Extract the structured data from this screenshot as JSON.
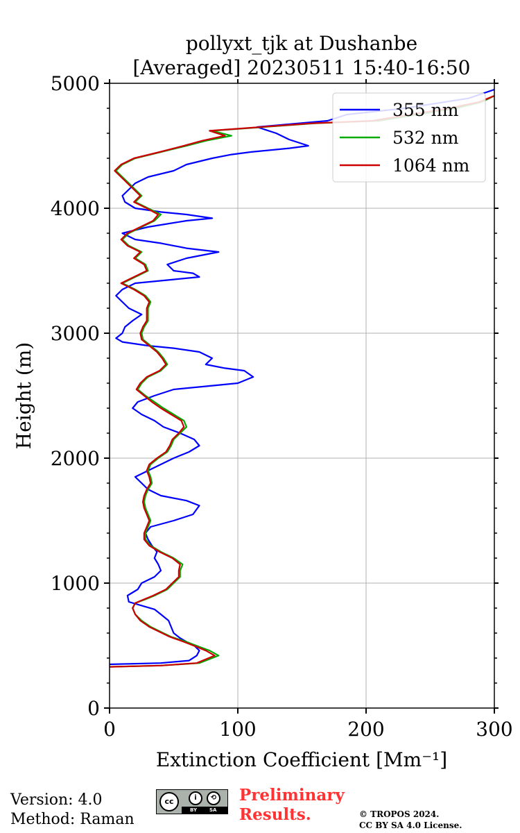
{
  "chart_data": {
    "type": "line",
    "title_line1": "pollyxt_tjk at Dushanbe",
    "title_line2": "[Averaged] 20230511 15:40-16:50",
    "xlabel": "Extinction Coefficient [Mm⁻¹]",
    "ylabel": "Height (m)",
    "xlim": [
      0,
      300
    ],
    "ylim": [
      0,
      5000
    ],
    "xticks": [
      "0",
      "100",
      "200",
      "300"
    ],
    "yticks": [
      "0",
      "1000",
      "2000",
      "3000",
      "4000",
      "5000"
    ],
    "grid": true,
    "legend_position": "top-right",
    "series": [
      {
        "name": "355 nm",
        "color": "#0000ff",
        "points": [
          [
            0,
            350
          ],
          [
            40,
            360
          ],
          [
            62,
            380
          ],
          [
            68,
            420
          ],
          [
            70,
            460
          ],
          [
            66,
            500
          ],
          [
            60,
            530
          ],
          [
            55,
            560
          ],
          [
            50,
            600
          ],
          [
            48,
            650
          ],
          [
            46,
            700
          ],
          [
            40,
            750
          ],
          [
            35,
            790
          ],
          [
            25,
            820
          ],
          [
            15,
            850
          ],
          [
            14,
            900
          ],
          [
            22,
            950
          ],
          [
            25,
            1000
          ],
          [
            35,
            1050
          ],
          [
            40,
            1100
          ],
          [
            38,
            1150
          ],
          [
            35,
            1200
          ],
          [
            37,
            1250
          ],
          [
            33,
            1300
          ],
          [
            30,
            1350
          ],
          [
            28,
            1400
          ],
          [
            32,
            1450
          ],
          [
            50,
            1500
          ],
          [
            65,
            1550
          ],
          [
            70,
            1620
          ],
          [
            60,
            1660
          ],
          [
            40,
            1700
          ],
          [
            30,
            1750
          ],
          [
            25,
            1800
          ],
          [
            20,
            1850
          ],
          [
            30,
            1900
          ],
          [
            40,
            1950
          ],
          [
            50,
            2000
          ],
          [
            62,
            2050
          ],
          [
            70,
            2100
          ],
          [
            66,
            2150
          ],
          [
            55,
            2200
          ],
          [
            42,
            2250
          ],
          [
            35,
            2300
          ],
          [
            25,
            2350
          ],
          [
            18,
            2400
          ],
          [
            22,
            2450
          ],
          [
            35,
            2500
          ],
          [
            50,
            2550
          ],
          [
            80,
            2580
          ],
          [
            100,
            2600
          ],
          [
            112,
            2650
          ],
          [
            105,
            2700
          ],
          [
            90,
            2720
          ],
          [
            75,
            2750
          ],
          [
            80,
            2800
          ],
          [
            70,
            2850
          ],
          [
            50,
            2880
          ],
          [
            30,
            2900
          ],
          [
            10,
            2930
          ],
          [
            5,
            2960
          ],
          [
            10,
            3000
          ],
          [
            12,
            3050
          ],
          [
            18,
            3100
          ],
          [
            25,
            3150
          ],
          [
            15,
            3200
          ],
          [
            10,
            3250
          ],
          [
            5,
            3300
          ],
          [
            10,
            3350
          ],
          [
            20,
            3400
          ],
          [
            50,
            3430
          ],
          [
            70,
            3450
          ],
          [
            65,
            3480
          ],
          [
            50,
            3500
          ],
          [
            45,
            3550
          ],
          [
            60,
            3600
          ],
          [
            85,
            3650
          ],
          [
            60,
            3680
          ],
          [
            40,
            3720
          ],
          [
            20,
            3750
          ],
          [
            10,
            3800
          ],
          [
            30,
            3850
          ],
          [
            60,
            3900
          ],
          [
            80,
            3920
          ],
          [
            60,
            3950
          ],
          [
            40,
            3970
          ],
          [
            20,
            4000
          ],
          [
            12,
            4050
          ],
          [
            10,
            4100
          ],
          [
            15,
            4150
          ],
          [
            20,
            4200
          ],
          [
            30,
            4250
          ],
          [
            50,
            4300
          ],
          [
            60,
            4350
          ],
          [
            80,
            4400
          ],
          [
            95,
            4430
          ],
          [
            110,
            4450
          ],
          [
            140,
            4480
          ],
          [
            155,
            4500
          ],
          [
            140,
            4550
          ],
          [
            130,
            4600
          ],
          [
            115,
            4650
          ],
          [
            170,
            4700
          ],
          [
            185,
            4750
          ],
          [
            230,
            4800
          ],
          [
            280,
            4880
          ],
          [
            300,
            4950
          ]
        ]
      },
      {
        "name": "532 nm",
        "color": "#00aa00",
        "points": [
          [
            0,
            330
          ],
          [
            40,
            340
          ],
          [
            70,
            360
          ],
          [
            85,
            420
          ],
          [
            78,
            460
          ],
          [
            70,
            490
          ],
          [
            60,
            530
          ],
          [
            48,
            570
          ],
          [
            40,
            610
          ],
          [
            32,
            650
          ],
          [
            25,
            700
          ],
          [
            20,
            750
          ],
          [
            18,
            800
          ],
          [
            20,
            840
          ],
          [
            28,
            870
          ],
          [
            35,
            900
          ],
          [
            45,
            950
          ],
          [
            50,
            1000
          ],
          [
            55,
            1050
          ],
          [
            55,
            1100
          ],
          [
            57,
            1150
          ],
          [
            50,
            1200
          ],
          [
            40,
            1250
          ],
          [
            32,
            1300
          ],
          [
            28,
            1350
          ],
          [
            28,
            1400
          ],
          [
            30,
            1450
          ],
          [
            32,
            1500
          ],
          [
            30,
            1550
          ],
          [
            28,
            1600
          ],
          [
            27,
            1650
          ],
          [
            28,
            1700
          ],
          [
            30,
            1750
          ],
          [
            33,
            1800
          ],
          [
            32,
            1850
          ],
          [
            30,
            1900
          ],
          [
            32,
            1950
          ],
          [
            38,
            2000
          ],
          [
            45,
            2050
          ],
          [
            48,
            2100
          ],
          [
            50,
            2150
          ],
          [
            55,
            2200
          ],
          [
            60,
            2250
          ],
          [
            58,
            2300
          ],
          [
            50,
            2350
          ],
          [
            42,
            2400
          ],
          [
            35,
            2450
          ],
          [
            28,
            2500
          ],
          [
            22,
            2550
          ],
          [
            25,
            2600
          ],
          [
            30,
            2650
          ],
          [
            40,
            2700
          ],
          [
            45,
            2750
          ],
          [
            42,
            2800
          ],
          [
            38,
            2850
          ],
          [
            32,
            2900
          ],
          [
            26,
            2950
          ],
          [
            25,
            3000
          ],
          [
            27,
            3050
          ],
          [
            30,
            3100
          ],
          [
            30,
            3150
          ],
          [
            30,
            3200
          ],
          [
            32,
            3250
          ],
          [
            28,
            3300
          ],
          [
            20,
            3350
          ],
          [
            10,
            3400
          ],
          [
            20,
            3450
          ],
          [
            30,
            3500
          ],
          [
            28,
            3550
          ],
          [
            20,
            3600
          ],
          [
            25,
            3650
          ],
          [
            15,
            3700
          ],
          [
            10,
            3750
          ],
          [
            15,
            3800
          ],
          [
            25,
            3850
          ],
          [
            35,
            3900
          ],
          [
            40,
            3950
          ],
          [
            30,
            4000
          ],
          [
            20,
            4050
          ],
          [
            25,
            4100
          ],
          [
            20,
            4150
          ],
          [
            15,
            4200
          ],
          [
            10,
            4250
          ],
          [
            5,
            4300
          ],
          [
            10,
            4350
          ],
          [
            20,
            4400
          ],
          [
            40,
            4450
          ],
          [
            60,
            4500
          ],
          [
            75,
            4540
          ],
          [
            95,
            4580
          ],
          [
            80,
            4620
          ],
          [
            120,
            4650
          ],
          [
            160,
            4680
          ],
          [
            210,
            4700
          ],
          [
            240,
            4750
          ],
          [
            270,
            4800
          ],
          [
            290,
            4850
          ],
          [
            300,
            4900
          ]
        ]
      },
      {
        "name": "1064 nm",
        "color": "#cc0000",
        "points": [
          [
            0,
            330
          ],
          [
            40,
            340
          ],
          [
            68,
            360
          ],
          [
            82,
            420
          ],
          [
            75,
            460
          ],
          [
            68,
            490
          ],
          [
            58,
            530
          ],
          [
            47,
            570
          ],
          [
            39,
            610
          ],
          [
            31,
            650
          ],
          [
            24,
            700
          ],
          [
            20,
            750
          ],
          [
            18,
            800
          ],
          [
            20,
            840
          ],
          [
            27,
            870
          ],
          [
            34,
            900
          ],
          [
            44,
            950
          ],
          [
            49,
            1000
          ],
          [
            54,
            1050
          ],
          [
            54,
            1100
          ],
          [
            55,
            1150
          ],
          [
            49,
            1200
          ],
          [
            39,
            1250
          ],
          [
            31,
            1300
          ],
          [
            27,
            1350
          ],
          [
            27,
            1400
          ],
          [
            29,
            1450
          ],
          [
            31,
            1500
          ],
          [
            29,
            1550
          ],
          [
            27,
            1600
          ],
          [
            26,
            1650
          ],
          [
            27,
            1700
          ],
          [
            29,
            1750
          ],
          [
            32,
            1800
          ],
          [
            31,
            1850
          ],
          [
            29,
            1900
          ],
          [
            31,
            1950
          ],
          [
            37,
            2000
          ],
          [
            44,
            2050
          ],
          [
            47,
            2100
          ],
          [
            49,
            2150
          ],
          [
            54,
            2200
          ],
          [
            58,
            2250
          ],
          [
            56,
            2300
          ],
          [
            48,
            2350
          ],
          [
            40,
            2400
          ],
          [
            33,
            2450
          ],
          [
            27,
            2500
          ],
          [
            21,
            2550
          ],
          [
            24,
            2600
          ],
          [
            29,
            2650
          ],
          [
            39,
            2700
          ],
          [
            44,
            2750
          ],
          [
            41,
            2800
          ],
          [
            37,
            2850
          ],
          [
            31,
            2900
          ],
          [
            25,
            2950
          ],
          [
            24,
            3000
          ],
          [
            26,
            3050
          ],
          [
            29,
            3100
          ],
          [
            29,
            3150
          ],
          [
            29,
            3200
          ],
          [
            31,
            3250
          ],
          [
            27,
            3300
          ],
          [
            19,
            3350
          ],
          [
            9,
            3400
          ],
          [
            19,
            3450
          ],
          [
            29,
            3500
          ],
          [
            27,
            3550
          ],
          [
            19,
            3600
          ],
          [
            24,
            3650
          ],
          [
            14,
            3700
          ],
          [
            9,
            3750
          ],
          [
            14,
            3800
          ],
          [
            24,
            3850
          ],
          [
            34,
            3900
          ],
          [
            38,
            3950
          ],
          [
            29,
            4000
          ],
          [
            19,
            4050
          ],
          [
            24,
            4100
          ],
          [
            19,
            4150
          ],
          [
            14,
            4200
          ],
          [
            9,
            4250
          ],
          [
            4,
            4300
          ],
          [
            9,
            4350
          ],
          [
            19,
            4400
          ],
          [
            39,
            4450
          ],
          [
            58,
            4500
          ],
          [
            72,
            4540
          ],
          [
            90,
            4580
          ],
          [
            78,
            4620
          ],
          [
            118,
            4650
          ],
          [
            158,
            4680
          ],
          [
            205,
            4700
          ],
          [
            235,
            4750
          ],
          [
            265,
            4800
          ],
          [
            288,
            4850
          ],
          [
            300,
            4900
          ]
        ]
      }
    ]
  },
  "footer": {
    "version": "Version: 4.0",
    "method": "Method: Raman",
    "preliminary_line1": "Preliminary",
    "preliminary_line2": "Results.",
    "copyright_line1": "© TROPOS 2024.",
    "copyright_line2": "CC BY SA 4.0 License.",
    "license_badge": "CC BY SA",
    "badge_cc": "cc",
    "badge_by": "BY",
    "badge_sa": "SA"
  }
}
